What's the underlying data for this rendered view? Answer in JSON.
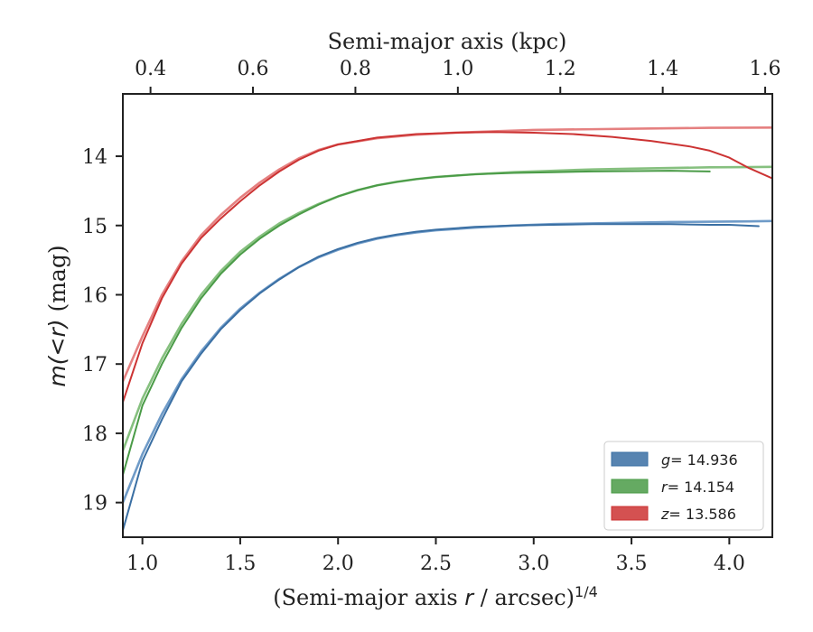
{
  "chart_data": {
    "type": "line",
    "xlabel_prefix": "(Semi-major axis ",
    "xlabel_r": "r",
    "xlabel_suffix": " / arcsec)",
    "xlabel_exponent": "1/4",
    "top_xlabel": "Semi-major axis (kpc)",
    "ylabel_m": "m",
    "ylabel_args": "(<r)",
    "ylabel_unit": " (mag)",
    "xlim": [
      0.9,
      4.22
    ],
    "ylim": [
      19.5,
      13.1
    ],
    "y_inverted": true,
    "top_xlim": [
      0.346,
      1.614
    ],
    "x_ticks": [
      1.0,
      1.5,
      2.0,
      2.5,
      3.0,
      3.5,
      4.0
    ],
    "x_tick_labels": [
      "1.0",
      "1.5",
      "2.0",
      "2.5",
      "3.0",
      "3.5",
      "4.0"
    ],
    "y_ticks": [
      14,
      15,
      16,
      17,
      18,
      19
    ],
    "y_tick_labels": [
      "14",
      "15",
      "16",
      "17",
      "18",
      "19"
    ],
    "top_ticks": [
      0.4,
      0.6,
      0.8,
      1.0,
      1.2,
      1.4,
      1.6
    ],
    "top_tick_labels": [
      "0.4",
      "0.6",
      "0.8",
      "1.0",
      "1.2",
      "1.4",
      "1.6"
    ],
    "legend_position": "lower-right",
    "series": [
      {
        "name": "g",
        "legend_value": "= 14.936",
        "color": "#3a6fa3",
        "model_color": "#6f9bc8",
        "x": [
          0.9,
          1.0,
          1.1,
          1.2,
          1.3,
          1.4,
          1.5,
          1.6,
          1.7,
          1.8,
          1.9,
          2.0,
          2.1,
          2.2,
          2.3,
          2.4,
          2.5,
          2.7,
          2.9,
          3.1,
          3.3,
          3.5,
          3.7,
          3.9,
          4.0,
          4.15
        ],
        "y": [
          19.4,
          18.4,
          17.8,
          17.25,
          16.85,
          16.5,
          16.22,
          15.98,
          15.78,
          15.6,
          15.45,
          15.34,
          15.25,
          15.18,
          15.13,
          15.09,
          15.06,
          15.02,
          15.0,
          14.99,
          14.98,
          14.98,
          14.98,
          14.99,
          14.99,
          15.01
        ],
        "model_x": [
          0.9,
          1.0,
          1.1,
          1.2,
          1.3,
          1.4,
          1.5,
          1.6,
          1.7,
          1.8,
          1.9,
          2.0,
          2.1,
          2.2,
          2.3,
          2.4,
          2.5,
          2.7,
          2.9,
          3.1,
          3.3,
          3.5,
          3.7,
          3.9,
          4.1,
          4.22
        ],
        "model_y": [
          19.0,
          18.3,
          17.72,
          17.22,
          16.82,
          16.48,
          16.2,
          15.97,
          15.77,
          15.6,
          15.46,
          15.35,
          15.26,
          15.19,
          15.14,
          15.1,
          15.07,
          15.03,
          15.0,
          14.98,
          14.97,
          14.96,
          14.95,
          14.945,
          14.94,
          14.936
        ]
      },
      {
        "name": "r",
        "legend_value": "= 14.154",
        "color": "#4a9b47",
        "model_color": "#86c07f",
        "x": [
          0.9,
          1.0,
          1.1,
          1.2,
          1.3,
          1.4,
          1.5,
          1.6,
          1.7,
          1.8,
          1.9,
          2.0,
          2.1,
          2.2,
          2.3,
          2.4,
          2.5,
          2.7,
          2.9,
          3.1,
          3.3,
          3.5,
          3.7,
          3.9
        ],
        "y": [
          18.6,
          17.6,
          17.0,
          16.48,
          16.05,
          15.7,
          15.42,
          15.19,
          15.0,
          14.84,
          14.7,
          14.58,
          14.49,
          14.42,
          14.37,
          14.33,
          14.3,
          14.26,
          14.24,
          14.23,
          14.22,
          14.215,
          14.21,
          14.22
        ],
        "model_x": [
          0.9,
          1.0,
          1.1,
          1.2,
          1.3,
          1.4,
          1.5,
          1.6,
          1.7,
          1.8,
          1.9,
          2.0,
          2.1,
          2.2,
          2.3,
          2.4,
          2.5,
          2.7,
          2.9,
          3.1,
          3.3,
          3.5,
          3.7,
          3.9,
          4.1,
          4.22
        ],
        "model_y": [
          18.25,
          17.5,
          16.92,
          16.42,
          16.0,
          15.66,
          15.38,
          15.16,
          14.97,
          14.82,
          14.69,
          14.58,
          14.49,
          14.42,
          14.37,
          14.33,
          14.3,
          14.26,
          14.23,
          14.21,
          14.19,
          14.18,
          14.17,
          14.16,
          14.156,
          14.154
        ]
      },
      {
        "name": "z",
        "legend_value": "= 13.586",
        "color": "#cc3333",
        "model_color": "#e58080",
        "x": [
          0.9,
          1.0,
          1.1,
          1.2,
          1.3,
          1.4,
          1.5,
          1.6,
          1.7,
          1.8,
          1.9,
          2.0,
          2.2,
          2.4,
          2.6,
          2.8,
          3.0,
          3.2,
          3.4,
          3.6,
          3.8,
          3.9,
          4.0,
          4.1,
          4.22
        ],
        "y": [
          17.55,
          16.7,
          16.05,
          15.55,
          15.18,
          14.9,
          14.65,
          14.42,
          14.22,
          14.05,
          13.92,
          13.83,
          13.73,
          13.68,
          13.66,
          13.65,
          13.66,
          13.68,
          13.72,
          13.78,
          13.86,
          13.92,
          14.02,
          14.17,
          14.32
        ],
        "model_x": [
          0.9,
          1.0,
          1.1,
          1.2,
          1.3,
          1.4,
          1.5,
          1.6,
          1.7,
          1.8,
          1.9,
          2.0,
          2.2,
          2.4,
          2.6,
          2.8,
          3.0,
          3.3,
          3.6,
          3.9,
          4.22
        ],
        "model_y": [
          17.25,
          16.6,
          16.0,
          15.52,
          15.14,
          14.85,
          14.6,
          14.38,
          14.19,
          14.03,
          13.91,
          13.83,
          13.74,
          13.69,
          13.66,
          13.64,
          13.62,
          13.61,
          13.6,
          13.59,
          13.586
        ]
      }
    ]
  }
}
